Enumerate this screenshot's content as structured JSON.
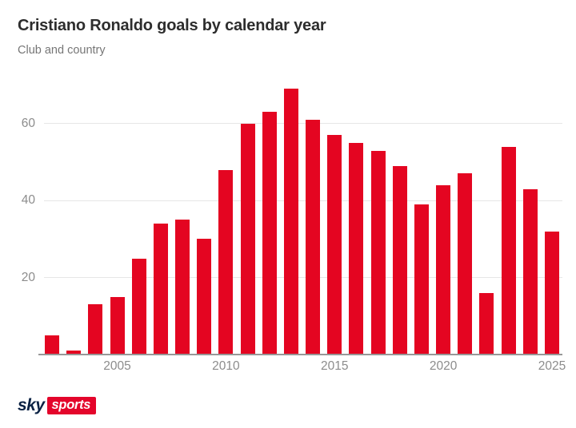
{
  "header": {
    "title": "Cristiano Ronaldo goals by calendar year",
    "subtitle": "Club and country"
  },
  "chart_data": {
    "type": "bar",
    "title": "Cristiano Ronaldo goals by calendar year",
    "subtitle": "Club and country",
    "categories": [
      "2002",
      "2003",
      "2004",
      "2005",
      "2006",
      "2007",
      "2008",
      "2009",
      "2010",
      "2011",
      "2012",
      "2013",
      "2014",
      "2015",
      "2016",
      "2017",
      "2018",
      "2019",
      "2020",
      "2021",
      "2022",
      "2023",
      "2024",
      "2025"
    ],
    "values": [
      5,
      1,
      13,
      15,
      25,
      34,
      35,
      30,
      48,
      60,
      63,
      69,
      61,
      57,
      55,
      53,
      49,
      39,
      44,
      47,
      16,
      54,
      43,
      32
    ],
    "xlabel": "",
    "ylabel": "",
    "ylim": [
      0,
      72.4
    ],
    "yticks": [
      20,
      40,
      60
    ],
    "xticks": [
      "2005",
      "2010",
      "2015",
      "2020",
      "2025"
    ],
    "grid": "horizontal",
    "legend": "none",
    "bar_color": "#e40521",
    "gridline_color": "#e6e6e6",
    "axis_line_color": "#979797",
    "tick_label_color": "#8c8c8c",
    "title_color": "#2d2d2d",
    "subtitle_color": "#767676"
  },
  "footer": {
    "logo_sky_text": "sky",
    "logo_sports_text": "sports",
    "logo_sky_color": "#0b2244",
    "logo_box_color": "#e4052b",
    "logo_sports_text_color": "#ffffff"
  }
}
